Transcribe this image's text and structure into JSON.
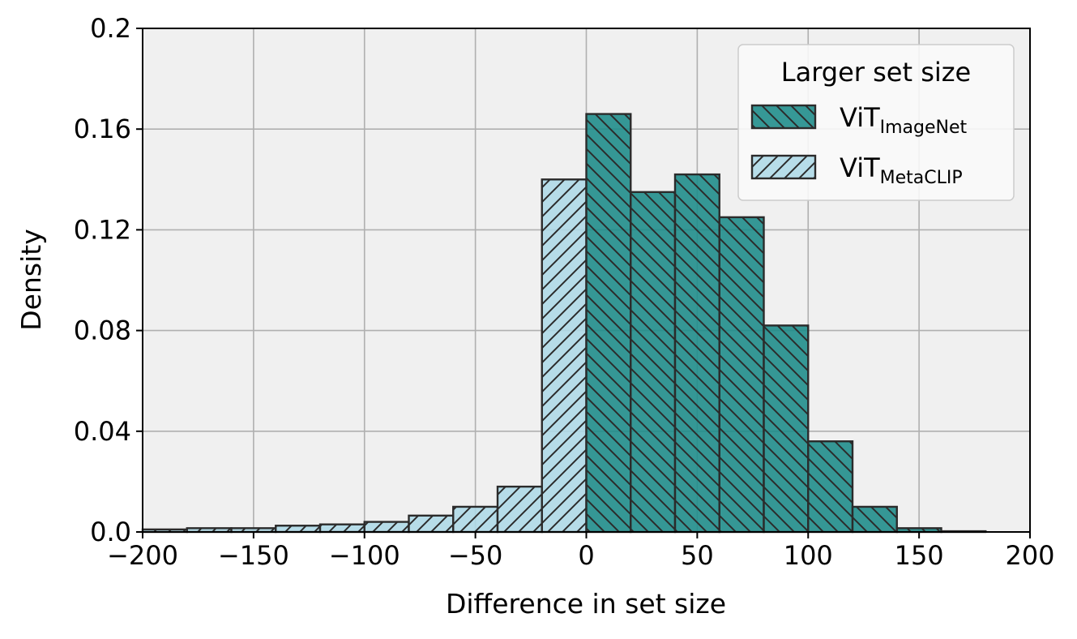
{
  "chart_data": {
    "type": "bar",
    "xlabel": "Difference in set size",
    "ylabel": "Density",
    "xlim": [
      -200,
      200
    ],
    "ylim": [
      0,
      0.2
    ],
    "xticks": [
      -200,
      -150,
      -100,
      -50,
      0,
      50,
      100,
      150,
      200
    ],
    "xtick_labels": [
      "−200",
      "−150",
      "−100",
      "−50",
      "0",
      "50",
      "100",
      "150",
      "200"
    ],
    "yticks": [
      0,
      0.04,
      0.08,
      0.12,
      0.16,
      0.2
    ],
    "ytick_labels": [
      "0.0",
      "0.04",
      "0.08",
      "0.12",
      "0.16",
      "0.2"
    ],
    "grid": true,
    "bin_width": 20,
    "legend": {
      "title": "Larger set size",
      "position": "top-right"
    },
    "series": [
      {
        "name": "ViT",
        "name_subscript": "ImageNet",
        "color": "#1a8a87",
        "hatch": "backslash",
        "bins": [
          {
            "x0": 0,
            "value": 0.166
          },
          {
            "x0": 20,
            "value": 0.135
          },
          {
            "x0": 40,
            "value": 0.142
          },
          {
            "x0": 60,
            "value": 0.125
          },
          {
            "x0": 80,
            "value": 0.082
          },
          {
            "x0": 100,
            "value": 0.036
          },
          {
            "x0": 120,
            "value": 0.01
          },
          {
            "x0": 140,
            "value": 0.0015
          },
          {
            "x0": 160,
            "value": 0.0003
          }
        ]
      },
      {
        "name": "ViT",
        "name_subscript": "MetaCLIP",
        "color": "#add8e6",
        "hatch": "slash",
        "bins": [
          {
            "x0": -200,
            "value": 0.001
          },
          {
            "x0": -180,
            "value": 0.0015
          },
          {
            "x0": -160,
            "value": 0.0015
          },
          {
            "x0": -140,
            "value": 0.0025
          },
          {
            "x0": -120,
            "value": 0.003
          },
          {
            "x0": -100,
            "value": 0.004
          },
          {
            "x0": -80,
            "value": 0.0065
          },
          {
            "x0": -60,
            "value": 0.01
          },
          {
            "x0": -40,
            "value": 0.018
          },
          {
            "x0": -20,
            "value": 0.14
          }
        ]
      }
    ]
  }
}
